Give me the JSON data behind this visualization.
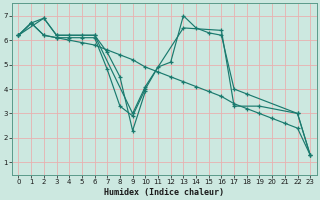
{
  "title": "",
  "xlabel": "Humidex (Indice chaleur)",
  "ylabel": "",
  "bg_color": "#cce8e0",
  "grid_color": "#e8b0b0",
  "line_color": "#1a7a6e",
  "spine_color": "#5a9a8a",
  "xlim": [
    -0.5,
    23.5
  ],
  "ylim": [
    0.5,
    7.5
  ],
  "xticks": [
    0,
    1,
    2,
    3,
    4,
    5,
    6,
    7,
    8,
    9,
    10,
    11,
    12,
    13,
    14,
    15,
    16,
    17,
    18,
    19,
    20,
    21,
    22,
    23
  ],
  "yticks": [
    1,
    2,
    3,
    4,
    5,
    6,
    7
  ],
  "series": [
    {
      "x": [
        0,
        1,
        2,
        3,
        4,
        5,
        6,
        7,
        8,
        9,
        10,
        11,
        12,
        13,
        14,
        15,
        16,
        17,
        18,
        22,
        23
      ],
      "y": [
        6.2,
        6.7,
        6.2,
        6.1,
        6.1,
        6.1,
        6.1,
        4.8,
        3.3,
        2.9,
        4.0,
        4.9,
        5.1,
        7.0,
        6.5,
        6.3,
        6.2,
        4.0,
        3.8,
        3.0,
        1.3
      ]
    },
    {
      "x": [
        0,
        1,
        2,
        3,
        4,
        5,
        6,
        7,
        8,
        9,
        10
      ],
      "y": [
        6.2,
        6.7,
        6.9,
        6.2,
        6.2,
        6.2,
        6.2,
        5.5,
        4.5,
        2.3,
        3.9
      ]
    },
    {
      "x": [
        0,
        2,
        3,
        6,
        9,
        10,
        13,
        16,
        17,
        19,
        22,
        23
      ],
      "y": [
        6.2,
        6.9,
        6.2,
        6.2,
        3.0,
        4.1,
        6.5,
        6.4,
        3.3,
        3.3,
        3.0,
        1.3
      ]
    },
    {
      "x": [
        0,
        1,
        2,
        3,
        4,
        5,
        6,
        7,
        8,
        9,
        10,
        11,
        12,
        13,
        14,
        15,
        16,
        17,
        18,
        19,
        20,
        21,
        22,
        23
      ],
      "y": [
        6.2,
        6.7,
        6.2,
        6.1,
        6.0,
        5.9,
        5.8,
        5.6,
        5.4,
        5.2,
        4.9,
        4.7,
        4.5,
        4.3,
        4.1,
        3.9,
        3.7,
        3.4,
        3.2,
        3.0,
        2.8,
        2.6,
        2.4,
        1.3
      ]
    }
  ]
}
